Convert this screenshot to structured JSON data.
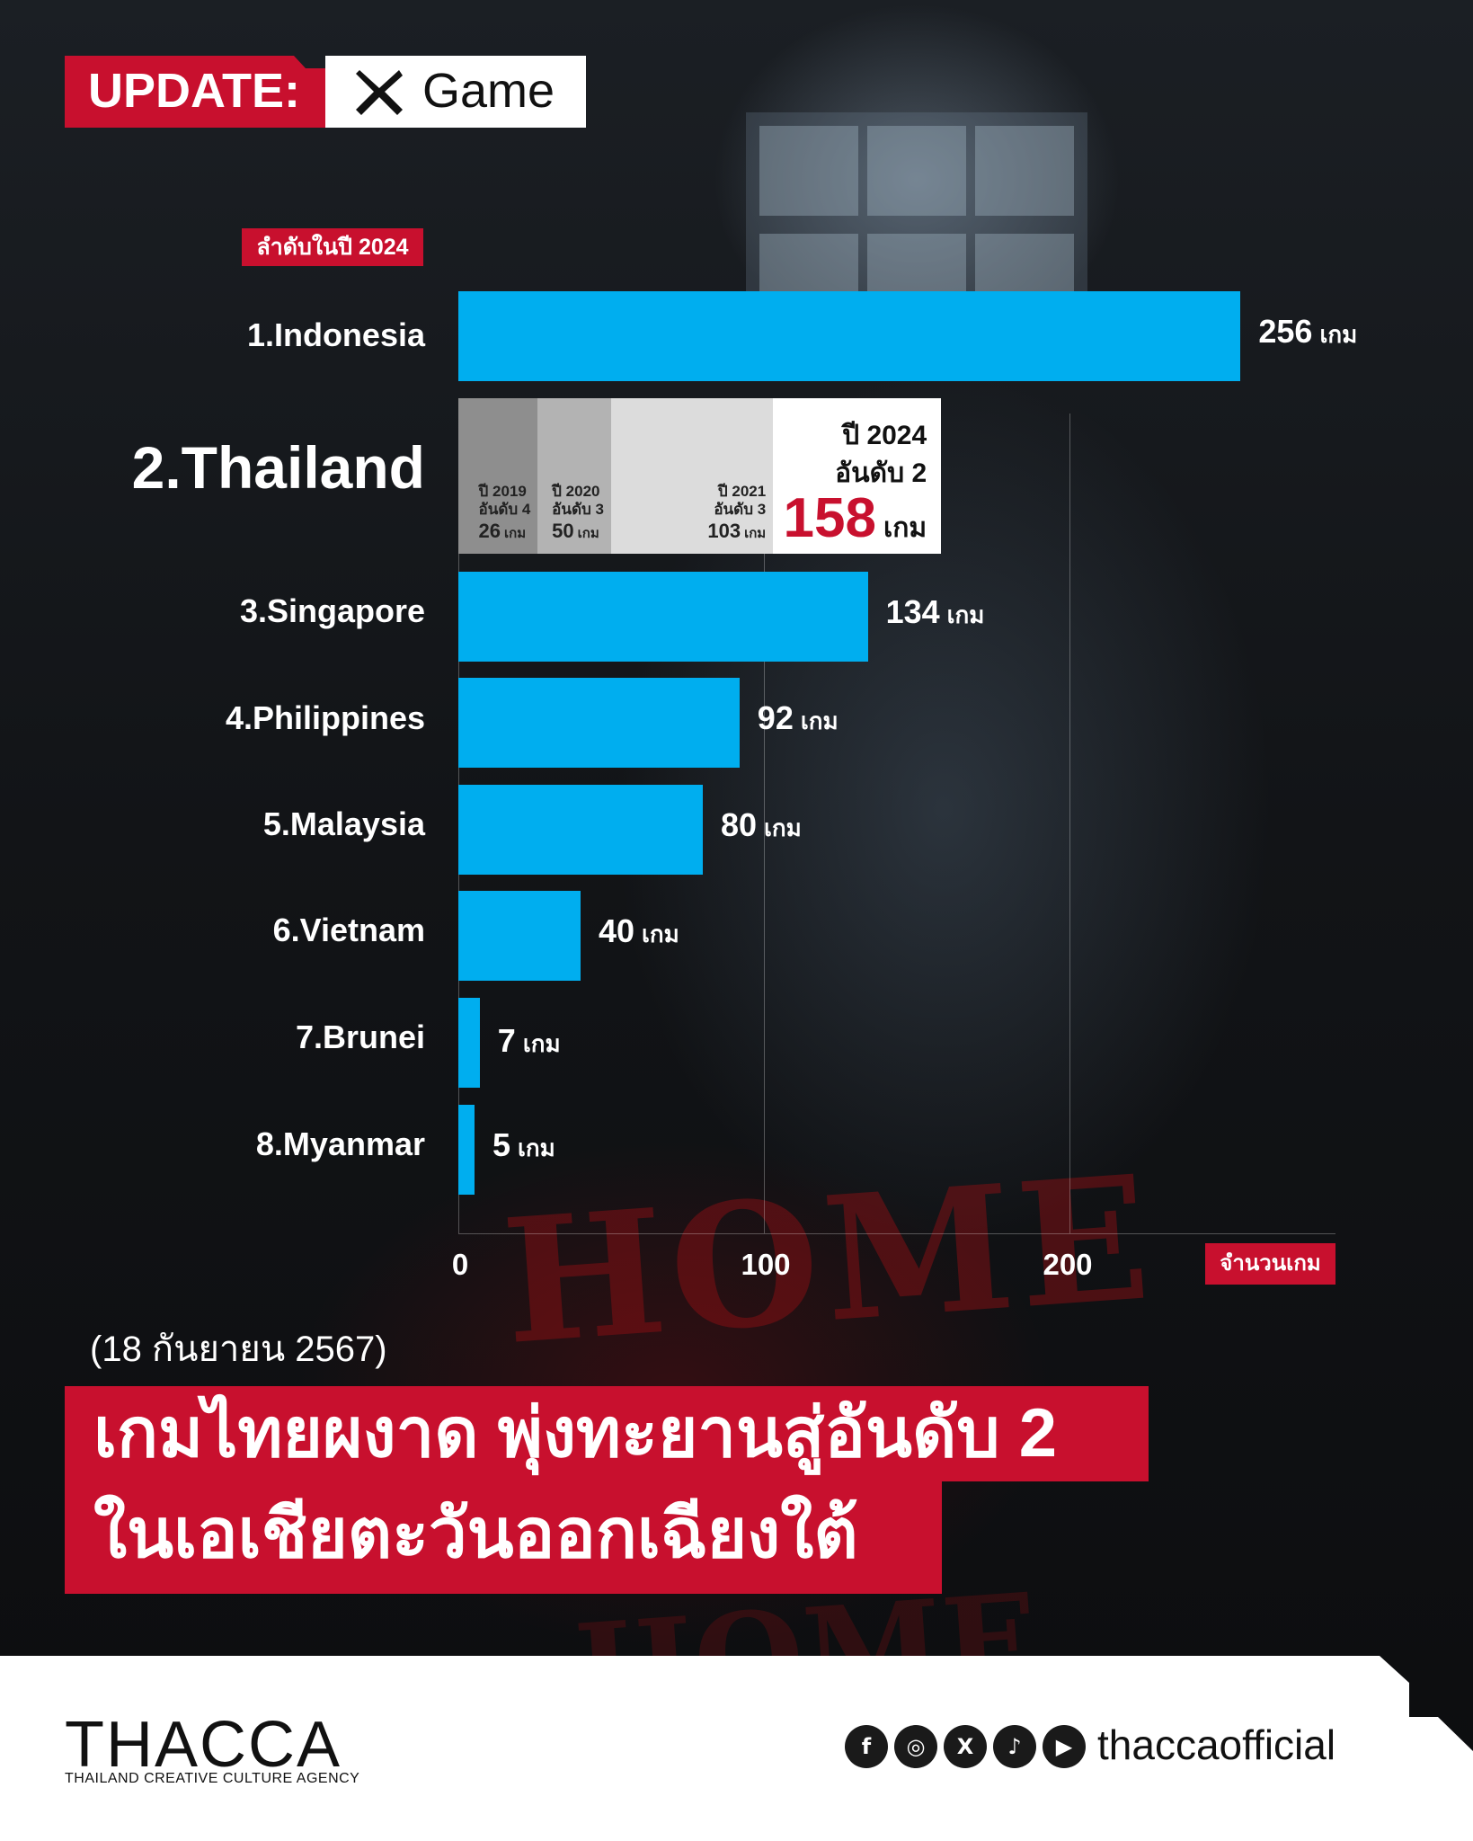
{
  "header": {
    "update_label": "UPDATE:",
    "category_label": "Game"
  },
  "rank_tag": "ลำดับในปี 2024",
  "chart_data": {
    "type": "bar",
    "orientation": "horizontal",
    "categories": [
      "1.Indonesia",
      "2.Thailand",
      "3.Singapore",
      "4.Philippines",
      "5.Malaysia",
      "6.Vietnam",
      "7.Brunei",
      "8.Myanmar"
    ],
    "values": [
      256,
      158,
      134,
      92,
      80,
      40,
      7,
      5
    ],
    "value_unit": "เกม",
    "value_labels": [
      "256",
      "158",
      "134",
      "92",
      "80",
      "40",
      "7",
      "5"
    ],
    "x_ticks": [
      "0",
      "100",
      "200"
    ],
    "xlim": [
      0,
      256
    ],
    "x_axis_label": "จำนวนเกม",
    "bar_color": "#00aeef",
    "grid": true,
    "highlight": {
      "category": "2.Thailand",
      "history": [
        {
          "year": "ปี 2019",
          "rank": "อันดับ 4",
          "value": 26,
          "value_text": "26",
          "unit": "เกม",
          "color": "#8e8e8e"
        },
        {
          "year": "ปี 2020",
          "rank": "อันดับ 3",
          "value": 50,
          "value_text": "50",
          "unit": "เกม",
          "color": "#b3b3b3"
        },
        {
          "year": "ปี 2021",
          "rank": "อันดับ 3",
          "value": 103,
          "value_text": "103",
          "unit": "เกม",
          "color": "#dcdcdc"
        },
        {
          "year": "ปี 2024",
          "rank": "อันดับ 2",
          "value": 158,
          "value_text": "158",
          "unit": "เกม",
          "color": "#ffffff"
        }
      ]
    }
  },
  "date_text": "(18 กันยายน 2567)",
  "headline": {
    "line1": "เกมไทยผงาด พุ่งทะยานสู่อันดับ 2",
    "line2": "ในเอเชียตะวันออกเฉียงใต้"
  },
  "footer": {
    "logo": "THACCA",
    "logo_sub": "THAILAND CREATIVE CULTURE AGENCY",
    "social_icons": [
      "facebook-icon",
      "instagram-icon",
      "x-icon",
      "tiktok-icon",
      "youtube-icon"
    ],
    "social_glyphs": [
      "f",
      "◎",
      "X",
      "♪",
      "▶"
    ],
    "handle": "thaccaofficial"
  },
  "colors": {
    "accent": "#c8102e",
    "bar": "#00aeef",
    "highlight_value": "#c8102e"
  },
  "background_text": "HOME"
}
